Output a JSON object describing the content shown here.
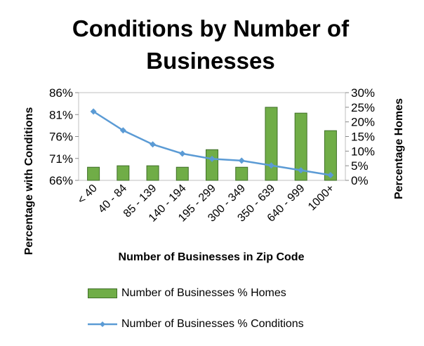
{
  "chart_data": {
    "type": "bar",
    "title": "Conditions by Number of Businesses",
    "xlabel": "Number of Businesses in Zip Code",
    "ylabel_left": "Percentage with Conditions",
    "ylabel_right": "Percentage Homes",
    "categories": [
      "< 40",
      "40 - 84",
      "85 - 139",
      "140 - 194",
      "195 - 299",
      "300 - 349",
      "350 - 639",
      "640 - 999",
      "1000+"
    ],
    "left_axis": {
      "min": 66,
      "max": 86,
      "ticks": [
        66,
        71,
        76,
        81,
        86
      ],
      "unit": "%"
    },
    "right_axis": {
      "min": 0,
      "max": 30,
      "ticks": [
        0,
        5,
        10,
        15,
        20,
        25,
        30
      ],
      "unit": "%"
    },
    "series": [
      {
        "name": "Number of Businesses % Homes",
        "kind": "bar",
        "axis": "right",
        "color": "#70ad47",
        "values": [
          4.5,
          5.0,
          5.0,
          4.5,
          10.5,
          4.5,
          25.0,
          23.0,
          17.0
        ]
      },
      {
        "name": "Number of Businesses % Conditions",
        "kind": "line",
        "axis": "left",
        "color": "#5b9bd5",
        "values": [
          81.7,
          77.4,
          74.2,
          72.1,
          70.9,
          70.5,
          69.4,
          68.3,
          67.2
        ]
      }
    ],
    "grid": false,
    "legend_position": "bottom"
  }
}
